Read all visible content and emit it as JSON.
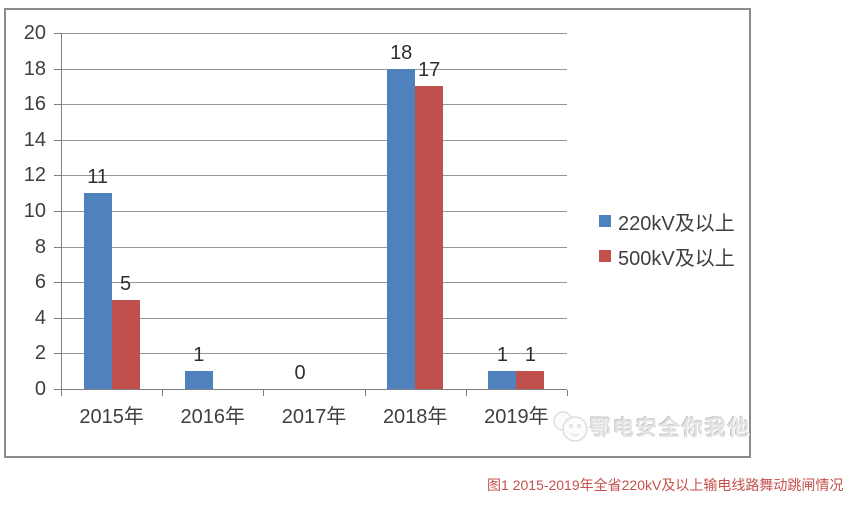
{
  "chart_data": {
    "type": "bar",
    "title": "",
    "xlabel": "",
    "ylabel": "",
    "categories": [
      "2015年",
      "2016年",
      "2017年",
      "2018年",
      "2019年"
    ],
    "series": [
      {
        "name": "220kV及以上",
        "color": "#4f81bd",
        "values": [
          11,
          1,
          0,
          18,
          1
        ],
        "value_labels": [
          "11",
          "1",
          "0",
          "18",
          "1"
        ]
      },
      {
        "name": "500kV及以上",
        "color": "#c0504d",
        "values": [
          5,
          0,
          0,
          17,
          1
        ],
        "value_labels": [
          "5",
          "",
          "",
          "17",
          "1"
        ]
      }
    ],
    "ylim": [
      0,
      20
    ],
    "yticks": [
      0,
      2,
      4,
      6,
      8,
      10,
      12,
      14,
      16,
      18,
      20
    ],
    "grid": true,
    "legend_position": "right-middle"
  },
  "watermark": {
    "text": "鄂电安全你我他",
    "logo": "panda-face-logo"
  },
  "caption": {
    "text": "图1  2015-2019年全省220kV及以上输电线路舞动跳闸情况"
  },
  "colors": {
    "grid": "#969696",
    "axis": "#7f7f7f",
    "frame": "#8b8b8b",
    "axis_text": "#3f3f3f",
    "caption": "#c5504b",
    "watermark": "#e2e2e2"
  }
}
